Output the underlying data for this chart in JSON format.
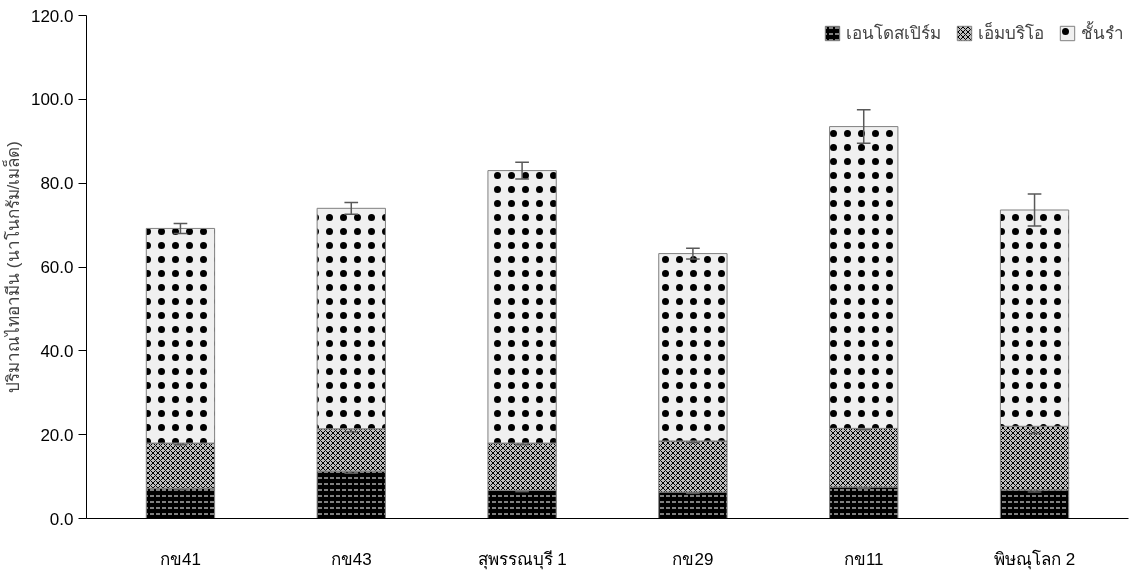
{
  "chart_data": {
    "type": "bar",
    "stacked": true,
    "ylabel": "ปริมาณไทอามีน (นาโนกรัม/เมล็ด)",
    "categories": [
      "กข41",
      "กข43",
      "สุพรรณบุรี 1",
      "กข29",
      "กข11",
      "พิษณุโลก 2"
    ],
    "series": [
      {
        "name": "เอนโดสเปิร์ม",
        "color": "#000000",
        "values": [
          7.2,
          11.3,
          6.7,
          6.3,
          7.5,
          6.8
        ],
        "errors": [
          0.3,
          0.5,
          0.3,
          0.3,
          0.3,
          0.5
        ]
      },
      {
        "name": "เอ็มบริโอ",
        "color": "#bfbfbf",
        "values": [
          10.8,
          10.1,
          11.3,
          12.2,
          14.0,
          15.2
        ],
        "errors": [
          0.4,
          0.7,
          0.4,
          0.4,
          0.3,
          1.7
        ]
      },
      {
        "name": "ชั้นรำ",
        "color": "#f0f0f0",
        "values": [
          51.2,
          52.6,
          65.0,
          44.7,
          72.0,
          51.6
        ],
        "errors": [
          1.2,
          1.4,
          2.0,
          1.3,
          4.0,
          3.8
        ]
      }
    ],
    "ylim": [
      0,
      120
    ],
    "yticks": [
      {
        "value": 0,
        "label": "0.0"
      },
      {
        "value": 20,
        "label": "20.0"
      },
      {
        "value": 40,
        "label": "40.0"
      },
      {
        "value": 60,
        "label": "60.0"
      },
      {
        "value": 80,
        "label": "80.0"
      },
      {
        "value": 100,
        "label": "100.0"
      },
      {
        "value": 120,
        "label": "120.0"
      }
    ],
    "grid": false,
    "legend": "top right"
  }
}
